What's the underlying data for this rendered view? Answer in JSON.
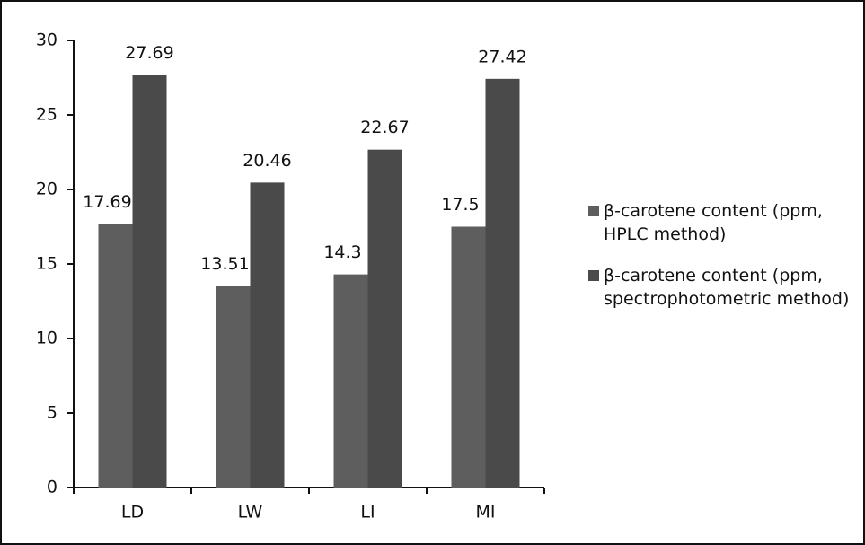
{
  "chart_data": {
    "type": "bar",
    "categories": [
      "LD",
      "LW",
      "LI",
      "MI"
    ],
    "series": [
      {
        "name": "β-carotene content (ppm, HPLC method)",
        "color": "#5e5e5e",
        "values": [
          17.69,
          13.51,
          14.3,
          17.5
        ]
      },
      {
        "name": "β-carotene content (ppm, spectrophotometric method)",
        "color": "#4a4a4a",
        "values": [
          27.69,
          20.46,
          22.67,
          27.42
        ]
      }
    ],
    "ylim": [
      0,
      30
    ],
    "yticks": [
      0,
      5,
      10,
      15,
      20,
      25,
      30
    ],
    "grid": false,
    "legend": "right"
  }
}
